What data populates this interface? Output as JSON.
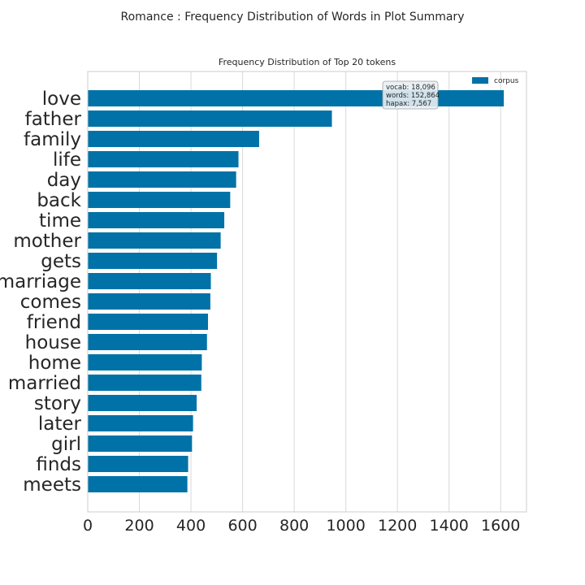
{
  "figure": {
    "suptitle": "Romance : Frequency Distribution of Words in Plot Summary"
  },
  "chart_data": {
    "type": "bar",
    "orientation": "horizontal",
    "title": "Frequency Distribution of Top 20 tokens",
    "xlabel": "",
    "ylabel": "",
    "categories": [
      "love",
      "father",
      "family",
      "life",
      "day",
      "back",
      "time",
      "mother",
      "gets",
      "marriage",
      "comes",
      "friend",
      "house",
      "home",
      "married",
      "story",
      "later",
      "girl",
      "finds",
      "meets"
    ],
    "series": [
      {
        "name": "corpus",
        "values": [
          1612,
          946,
          664,
          584,
          575,
          552,
          529,
          515,
          501,
          477,
          475,
          466,
          462,
          442,
          440,
          422,
          408,
          404,
          389,
          386
        ]
      }
    ],
    "xlim": [
      0,
      1700
    ],
    "xticks": [
      0,
      200,
      400,
      600,
      800,
      1000,
      1200,
      1400,
      1600
    ],
    "grid": true,
    "legend_position": "top-right",
    "colors": {
      "bar": "#0072a7",
      "grid": "#d9d9d9",
      "frame": "#cccccc"
    },
    "stats": {
      "vocab": "vocab: 18,096",
      "words": "words: 152,864",
      "hapax": "hapax: 7,567"
    }
  }
}
